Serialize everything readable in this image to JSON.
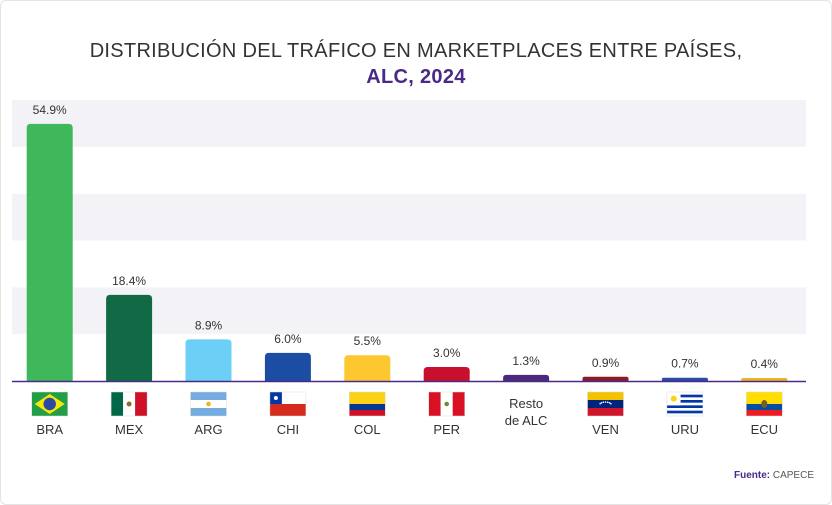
{
  "chart_data": {
    "type": "bar",
    "title": "DISTRIBUCIÓN DEL TRÁFICO EN MARKETPLACES ENTRE PAÍSES,",
    "subtitle": "ALC, 2024",
    "categories": [
      "BRA",
      "MEX",
      "ARG",
      "CHI",
      "COL",
      "PER",
      "Resto de ALC",
      "VEN",
      "URU",
      "ECU"
    ],
    "value_labels": [
      "54.9%",
      "18.4%",
      "8.9%",
      "6.0%",
      "5.5%",
      "3.0%",
      "1.3%",
      "0.9%",
      "0.7%",
      "0.4%"
    ],
    "values": [
      54.9,
      18.4,
      8.9,
      6.0,
      5.5,
      3.0,
      1.3,
      0.9,
      0.7,
      0.4
    ],
    "bar_colors": [
      "#3fb85c",
      "#116a45",
      "#6ccff6",
      "#1b4ea3",
      "#fdc82f",
      "#c8102e",
      "#4b2a7b",
      "#8b1a2b",
      "#2a4ea6",
      "#f0b323"
    ],
    "flags": [
      "brazil",
      "mexico",
      "argentina",
      "chile",
      "colombia",
      "peru",
      "",
      "venezuela",
      "uruguay",
      "ecuador"
    ],
    "ylim": [
      0,
      60
    ],
    "grid": "alternating horizontal bands",
    "xlabel": "",
    "ylabel": ""
  },
  "footer": {
    "source_label": "Fuente:",
    "source_value": "CAPECE"
  }
}
